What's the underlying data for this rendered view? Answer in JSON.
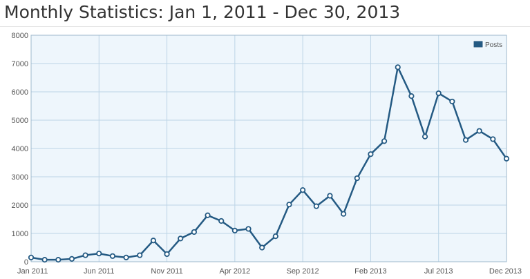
{
  "header": {
    "title": "Monthly Statistics: Jan 1, 2011 - Dec 30, 2013"
  },
  "colors": {
    "line": "#245a83",
    "plot_background": "#eef6fc",
    "grid": "#bcd4e6",
    "point_fill": "#ffffff"
  },
  "chart_data": {
    "type": "line",
    "xlabel": "",
    "ylabel": "",
    "ylim": [
      0,
      8000
    ],
    "xlim": [
      "2011-01",
      "2013-12"
    ],
    "yticks": [
      0,
      1000,
      2000,
      3000,
      4000,
      5000,
      6000,
      7000,
      8000
    ],
    "xticks": [
      {
        "date": "2011-01",
        "label": "Jan 2011"
      },
      {
        "date": "2011-06",
        "label": "Jun 2011"
      },
      {
        "date": "2011-11",
        "label": "Nov 2011"
      },
      {
        "date": "2012-04",
        "label": "Apr 2012"
      },
      {
        "date": "2012-09",
        "label": "Sep 2012"
      },
      {
        "date": "2013-02",
        "label": "Feb 2013"
      },
      {
        "date": "2013-07",
        "label": "Jul 2013"
      },
      {
        "date": "2013-12",
        "label": "Dec 2013"
      }
    ],
    "grid": true,
    "legend_position": "top-right",
    "series": [
      {
        "name": "Posts",
        "points": [
          {
            "x": "2011-01",
            "y": 150
          },
          {
            "x": "2011-02",
            "y": 70
          },
          {
            "x": "2011-03",
            "y": 70
          },
          {
            "x": "2011-04",
            "y": 100
          },
          {
            "x": "2011-05",
            "y": 230
          },
          {
            "x": "2011-06",
            "y": 290
          },
          {
            "x": "2011-07",
            "y": 200
          },
          {
            "x": "2011-08",
            "y": 150
          },
          {
            "x": "2011-09",
            "y": 230
          },
          {
            "x": "2011-10",
            "y": 750
          },
          {
            "x": "2011-11",
            "y": 270
          },
          {
            "x": "2011-12",
            "y": 820
          },
          {
            "x": "2012-01",
            "y": 1050
          },
          {
            "x": "2012-02",
            "y": 1640
          },
          {
            "x": "2012-03",
            "y": 1440
          },
          {
            "x": "2012-04",
            "y": 1100
          },
          {
            "x": "2012-05",
            "y": 1160
          },
          {
            "x": "2012-06",
            "y": 500
          },
          {
            "x": "2012-07",
            "y": 900
          },
          {
            "x": "2012-08",
            "y": 2020
          },
          {
            "x": "2012-09",
            "y": 2530
          },
          {
            "x": "2012-10",
            "y": 1960
          },
          {
            "x": "2012-11",
            "y": 2330
          },
          {
            "x": "2012-12",
            "y": 1690
          },
          {
            "x": "2013-01",
            "y": 2950
          },
          {
            "x": "2013-02",
            "y": 3800
          },
          {
            "x": "2013-03",
            "y": 4260
          },
          {
            "x": "2013-04",
            "y": 6870
          },
          {
            "x": "2013-05",
            "y": 5850
          },
          {
            "x": "2013-06",
            "y": 4420
          },
          {
            "x": "2013-07",
            "y": 5950
          },
          {
            "x": "2013-08",
            "y": 5660
          },
          {
            "x": "2013-09",
            "y": 4300
          },
          {
            "x": "2013-10",
            "y": 4620
          },
          {
            "x": "2013-11",
            "y": 4330
          },
          {
            "x": "2013-12",
            "y": 3640
          }
        ]
      }
    ]
  }
}
